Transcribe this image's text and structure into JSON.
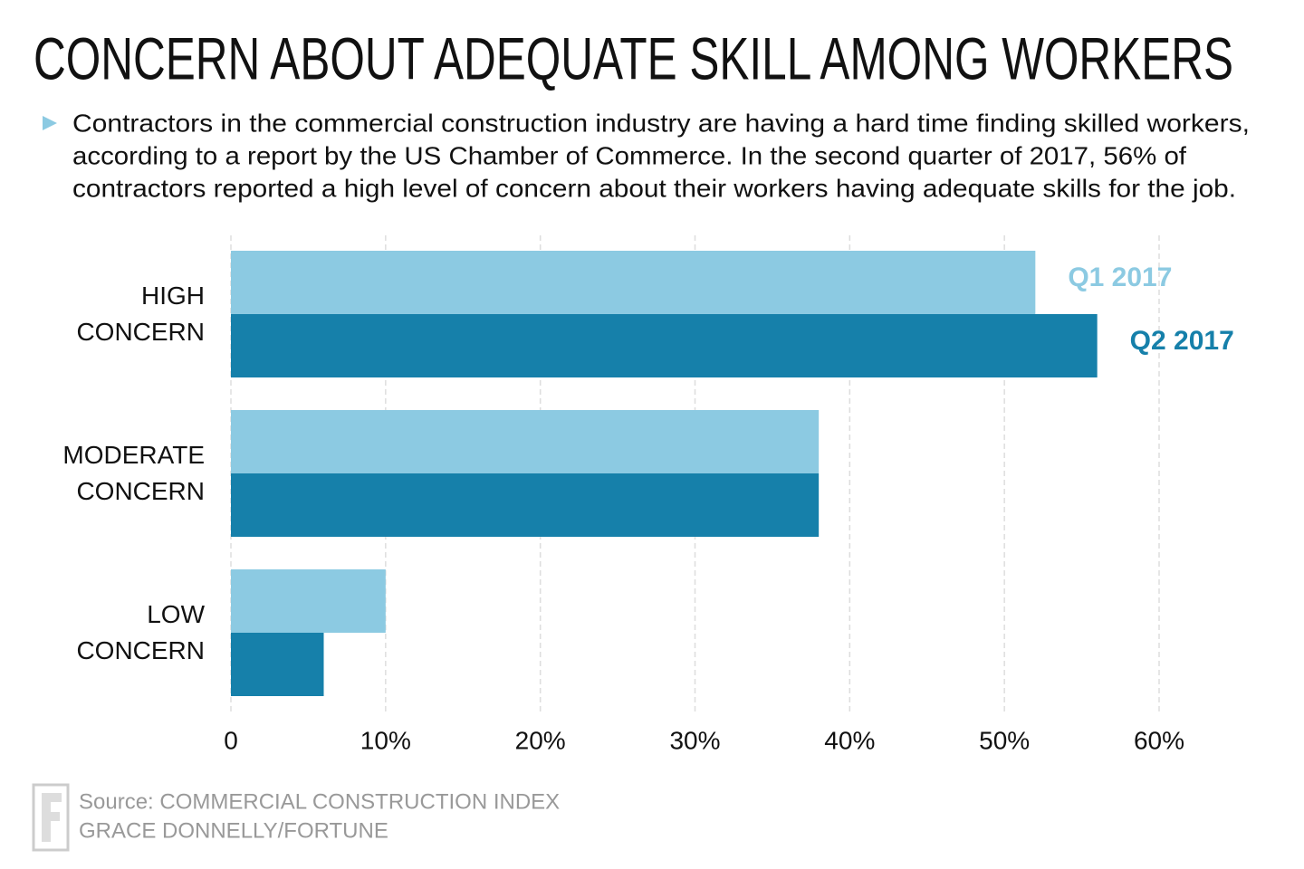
{
  "chart_data": {
    "type": "bar",
    "orientation": "horizontal",
    "title": "CONCERN ABOUT ADEQUATE SKILL AMONG WORKERS",
    "subtitle": [
      "Contractors in the commercial construction industry are having a hard time finding skilled workers,",
      "according to a report by the US Chamber of Commerce. In the second quarter of 2017, 56% of",
      "contractors reported a high level of concern about their workers having adequate skills for the job."
    ],
    "categories": [
      "HIGH CONCERN",
      "MODERATE CONCERN",
      "LOW CONCERN"
    ],
    "series": [
      {
        "name": "Q1 2017",
        "color": "#8ccae2",
        "values": [
          52,
          38,
          10
        ]
      },
      {
        "name": "Q2 2017",
        "color": "#1680aa",
        "values": [
          56,
          38,
          6
        ]
      }
    ],
    "xlim": [
      0,
      60
    ],
    "xticks": [
      0,
      {
        "value": 10,
        "label": "10%"
      },
      {
        "value": 20,
        "label": "20%"
      },
      {
        "value": 30,
        "label": "30%"
      },
      {
        "value": 40,
        "label": "40%"
      },
      {
        "value": 50,
        "label": "50%"
      },
      {
        "value": 60,
        "label": "60%"
      }
    ],
    "grid": true,
    "source": "Source: COMMERCIAL CONSTRUCTION INDEX",
    "credit": "GRACE DONNELLY/FORTUNE"
  }
}
